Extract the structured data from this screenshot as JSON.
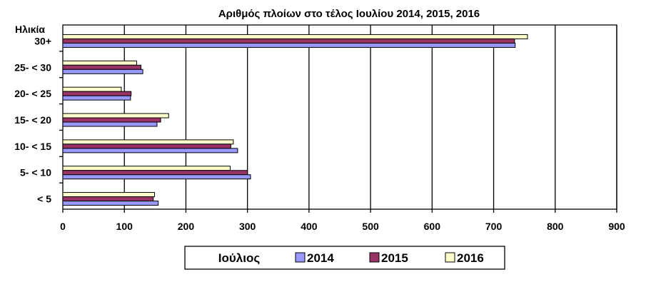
{
  "chart_data": {
    "type": "bar",
    "orientation": "horizontal",
    "title": "Αριθμός πλοίων στο τέλος Ιουλίου 2014, 2015, 2016",
    "ylabel": "Ηλικία",
    "categories": [
      "30+",
      "25- < 30",
      "20- < 25",
      "15- < 20",
      "10- < 15",
      "5- < 10",
      "<  5"
    ],
    "series": [
      {
        "name": "2016",
        "values": [
          755,
          120,
          95,
          172,
          277,
          272,
          149
        ]
      },
      {
        "name": "2015",
        "values": [
          734,
          127,
          111,
          159,
          273,
          300,
          147
        ]
      },
      {
        "name": "2014",
        "values": [
          735,
          130,
          110,
          153,
          284,
          305,
          155
        ]
      }
    ],
    "xlim": [
      0,
      900
    ],
    "xticks": [
      "0",
      "100",
      "200",
      "300",
      "400",
      "500",
      "600",
      "700",
      "800",
      "900"
    ],
    "grid": "vertical",
    "legend": {
      "placement": "bottom",
      "title": "Ιούλιος",
      "entries": [
        "2014",
        "2015",
        "2016"
      ]
    }
  },
  "colors": {
    "2014": "#9999FF",
    "2015": "#993366",
    "2016": "#FFFFCC"
  }
}
